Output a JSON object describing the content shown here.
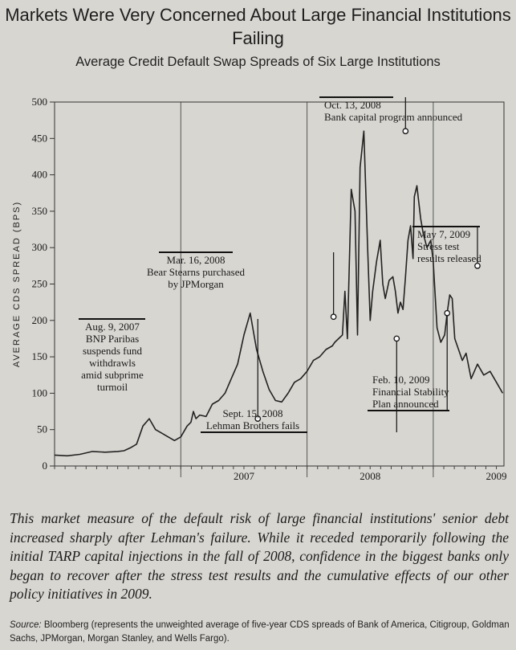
{
  "chart_data": {
    "type": "line",
    "title": "Markets Were Very Concerned About Large Financial Institutions Failing",
    "subtitle": "Average Credit Default Swap Spreads of Six Large Institutions",
    "ylabel": "AVERAGE CDS SPREAD (BPS)",
    "xlabel": "",
    "ylim": [
      0,
      500
    ],
    "xlim": [
      2006.0,
      2009.56
    ],
    "yticks": [
      "0",
      "50",
      "100",
      "150",
      "200",
      "250",
      "300",
      "350",
      "400",
      "450",
      "500"
    ],
    "xtick_labels": [
      "2007",
      "2008",
      "2009"
    ],
    "x": [
      2006.0,
      2006.1,
      2006.2,
      2006.3,
      2006.4,
      2006.5,
      2006.55,
      2006.6,
      2006.65,
      2006.7,
      2006.75,
      2006.8,
      2006.85,
      2006.9,
      2006.95,
      2007.0,
      2007.05,
      2007.08,
      2007.1,
      2007.12,
      2007.15,
      2007.2,
      2007.25,
      2007.3,
      2007.35,
      2007.4,
      2007.45,
      2007.5,
      2007.55,
      2007.6,
      2007.65,
      2007.7,
      2007.75,
      2007.8,
      2007.85,
      2007.9,
      2007.95,
      2008.0,
      2008.05,
      2008.1,
      2008.15,
      2008.2,
      2008.22,
      2008.25,
      2008.28,
      2008.3,
      2008.32,
      2008.35,
      2008.38,
      2008.4,
      2008.42,
      2008.45,
      2008.48,
      2008.5,
      2008.52,
      2008.55,
      2008.58,
      2008.6,
      2008.62,
      2008.65,
      2008.68,
      2008.7,
      2008.72,
      2008.74,
      2008.76,
      2008.78,
      2008.8,
      2008.82,
      2008.84,
      2008.85,
      2008.87,
      2008.9,
      2008.92,
      2008.95,
      2008.98,
      2009.0,
      2009.03,
      2009.06,
      2009.09,
      2009.11,
      2009.13,
      2009.15,
      2009.17,
      2009.2,
      2009.23,
      2009.26,
      2009.3,
      2009.35,
      2009.4,
      2009.45,
      2009.5,
      2009.55
    ],
    "values": [
      15,
      14,
      16,
      20,
      19,
      20,
      21,
      25,
      30,
      55,
      65,
      50,
      45,
      40,
      35,
      40,
      55,
      60,
      75,
      65,
      70,
      68,
      85,
      90,
      100,
      120,
      140,
      180,
      210,
      160,
      130,
      105,
      90,
      88,
      100,
      115,
      120,
      130,
      145,
      150,
      160,
      165,
      170,
      175,
      180,
      240,
      175,
      380,
      350,
      180,
      410,
      460,
      300,
      200,
      240,
      280,
      310,
      250,
      230,
      255,
      260,
      240,
      210,
      225,
      215,
      260,
      310,
      330,
      285,
      370,
      385,
      340,
      320,
      300,
      310,
      280,
      190,
      170,
      180,
      210,
      235,
      230,
      175,
      160,
      145,
      155,
      120,
      140,
      125,
      130,
      115,
      100
    ],
    "annotations": [
      {
        "date": "Aug. 9, 2007",
        "lines": [
          "BNP Paribas",
          "suspends fund",
          "withdrawls",
          "amid subprime",
          "turmoil"
        ],
        "x": 2007.61,
        "y": 65
      },
      {
        "date": "Mar. 16, 2008",
        "lines": [
          "Bear Stearns purchased",
          "by JPMorgan"
        ],
        "x": 2008.21,
        "y": 205
      },
      {
        "date": "Sept. 15, 2008",
        "lines": [
          "Lehman Brothers fails"
        ],
        "x": 2008.71,
        "y": 175
      },
      {
        "date": "Oct. 13, 2008",
        "lines": [
          "Bank capital program announced"
        ],
        "x": 2008.78,
        "y": 460
      },
      {
        "date": "Feb. 10, 2009",
        "lines": [
          "Financial Stability",
          "Plan announced"
        ],
        "x": 2009.11,
        "y": 210
      },
      {
        "date": "May 7, 2009",
        "lines": [
          "Stress test",
          "results released"
        ],
        "x": 2009.35,
        "y": 275
      }
    ]
  },
  "caption": "This market measure of the default risk of large financial institutions' senior debt increased sharply after Lehman's failure. While it receded temporarily following the initial TARP capital injections in the fall of 2008, confidence in the biggest banks only began to recover after the stress test results and the cumulative effects of our other policy initiatives in 2009.",
  "source_label": "Source:",
  "source_text": "Bloomberg (represents the unweighted average of five-year CDS spreads of Bank of America, Citigroup, Goldman Sachs, JPMorgan, Morgan Stanley, and Wells Fargo)."
}
